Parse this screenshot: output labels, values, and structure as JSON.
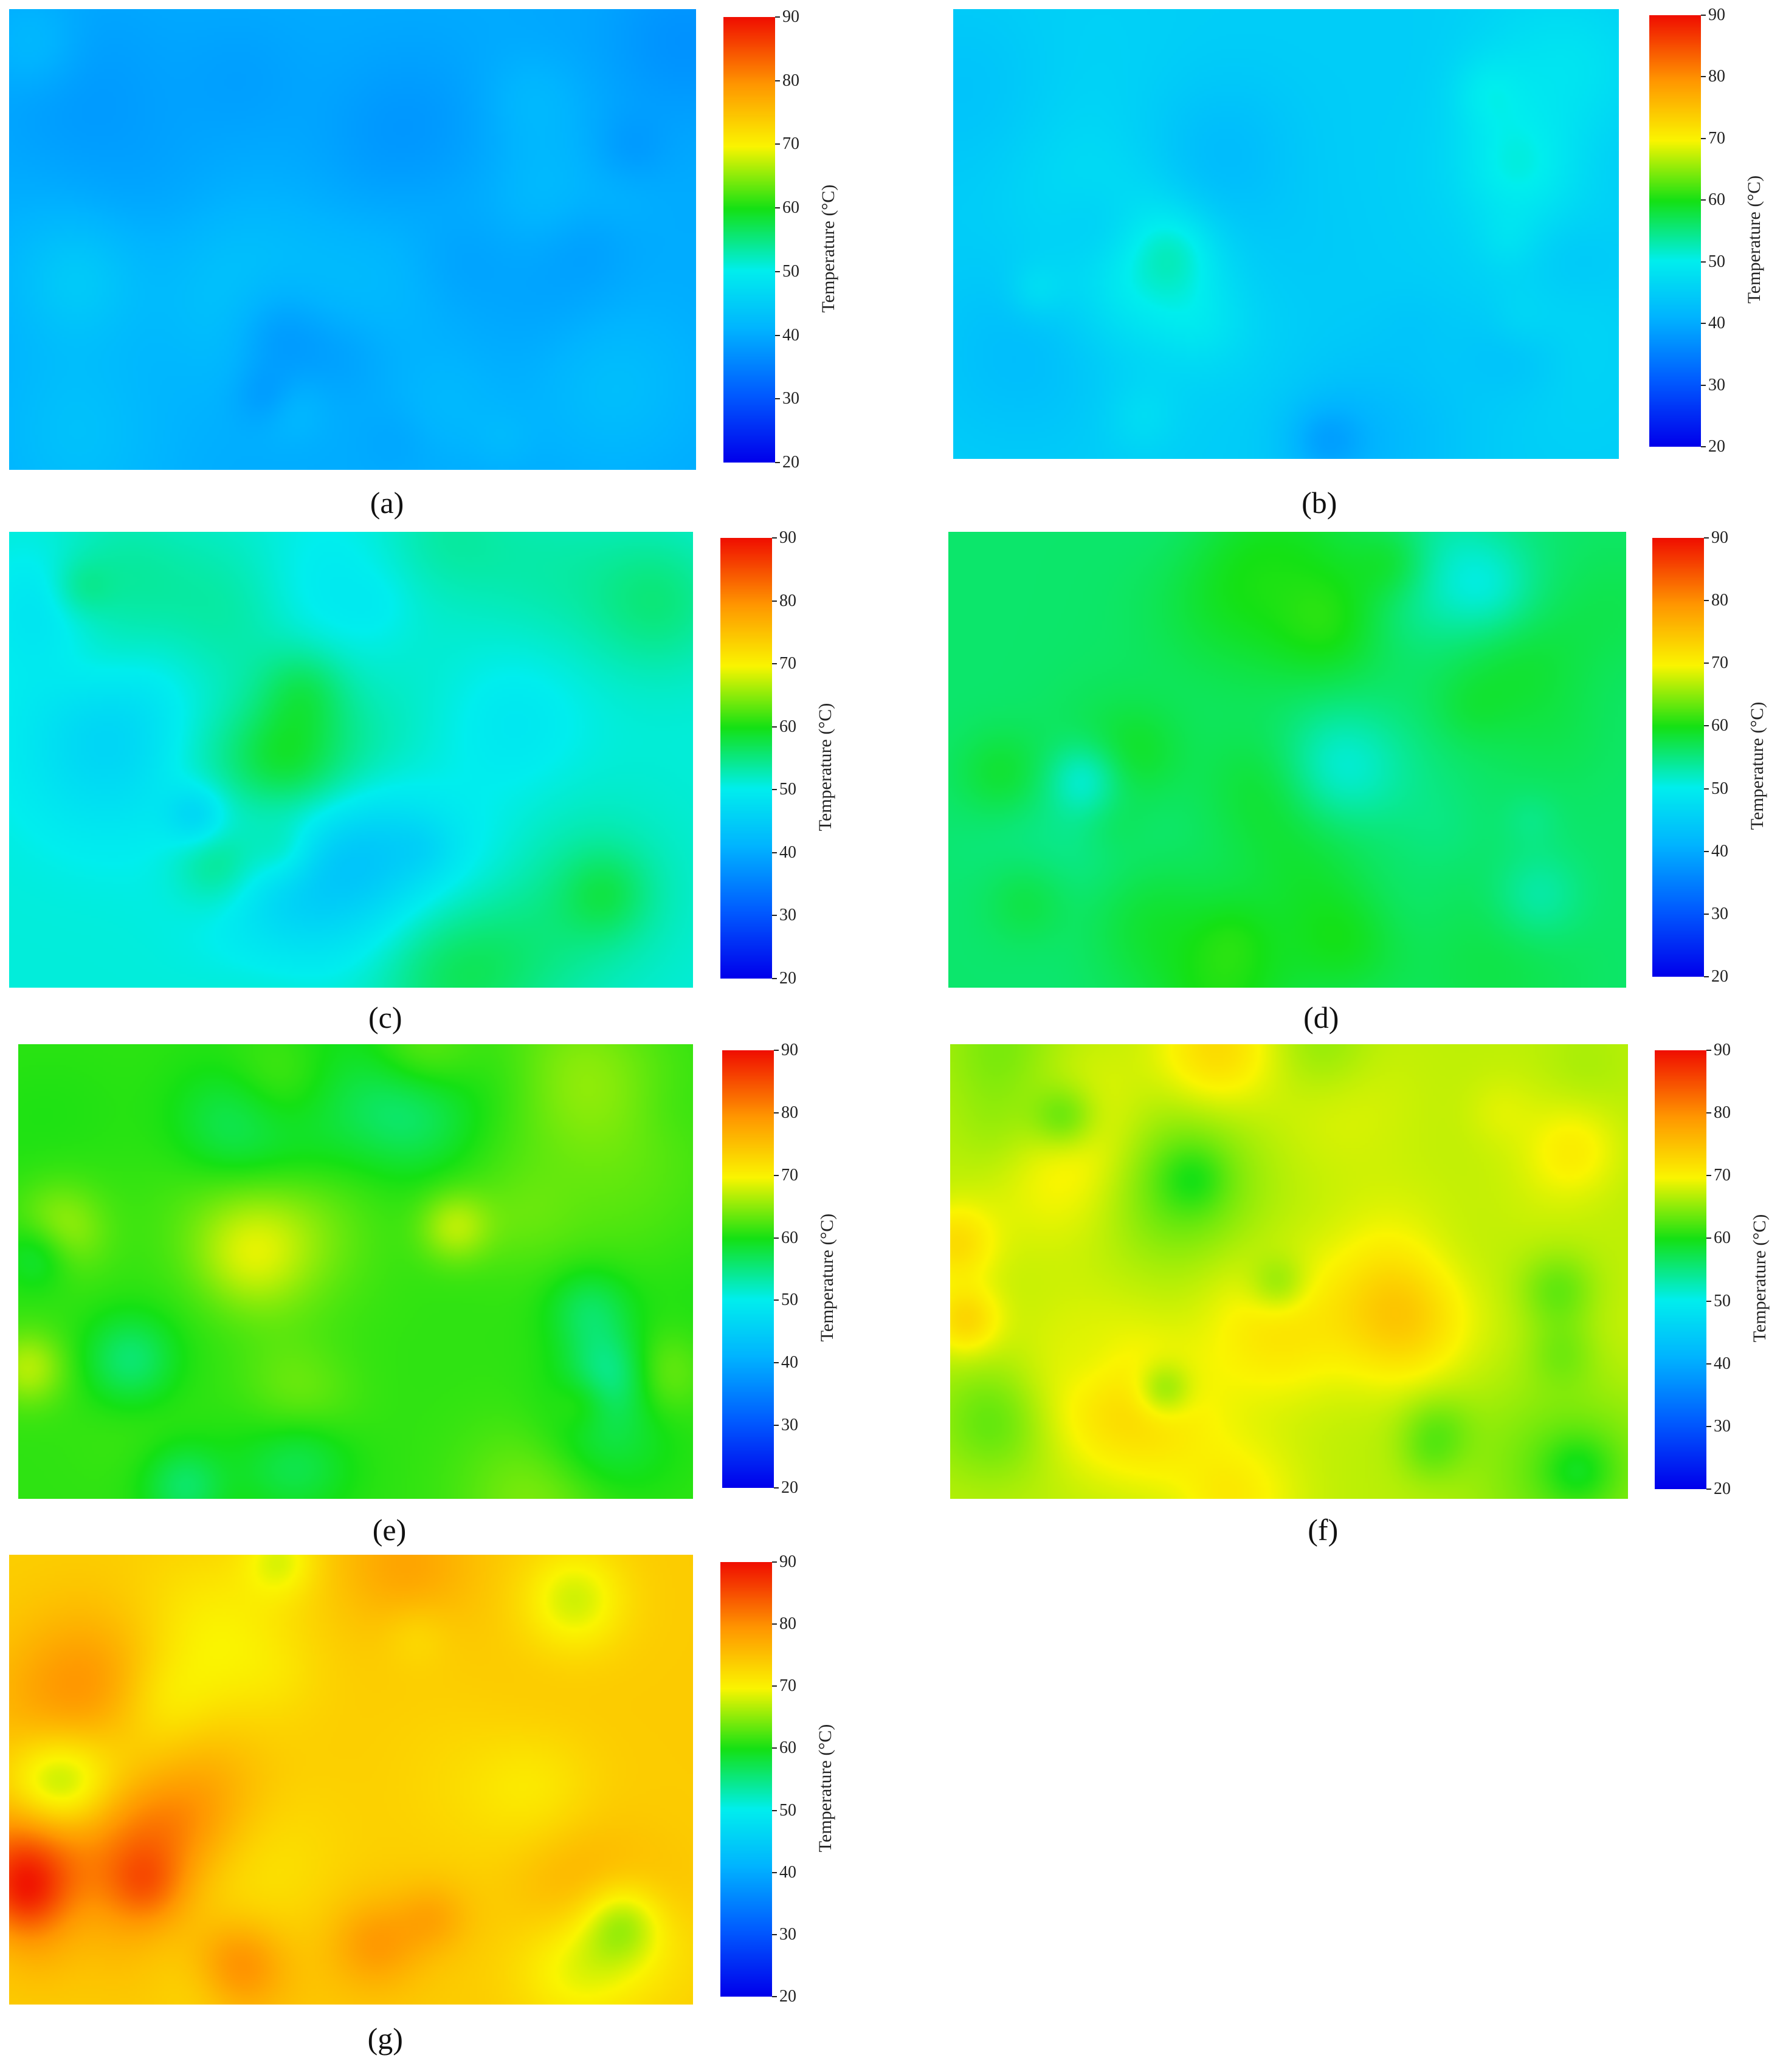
{
  "chart_data": [
    {
      "type": "heatmap",
      "label": "(a)",
      "zrange": [
        20,
        90
      ],
      "colorbar": {
        "title": "Temperature (°C)",
        "ticks": [
          90,
          80,
          70,
          60,
          50,
          40,
          30,
          20
        ]
      },
      "temp_base": 40,
      "temp_spread": 3,
      "seed": 11
    },
    {
      "type": "heatmap",
      "label": "(b)",
      "zrange": [
        20,
        90
      ],
      "colorbar": {
        "title": "Temperature (°C)",
        "ticks": [
          90,
          80,
          70,
          60,
          50,
          40,
          30,
          20
        ]
      },
      "temp_base": 45,
      "temp_spread": 4,
      "seed": 23
    },
    {
      "type": "heatmap",
      "label": "(c)",
      "zrange": [
        20,
        90
      ],
      "colorbar": {
        "title": "Temperature (°C)",
        "ticks": [
          90,
          80,
          70,
          60,
          50,
          40,
          30,
          20
        ]
      },
      "temp_base": 51,
      "temp_spread": 5,
      "seed": 37
    },
    {
      "type": "heatmap",
      "label": "(d)",
      "zrange": [
        20,
        90
      ],
      "colorbar": {
        "title": "Temperature (°C)",
        "ticks": [
          90,
          80,
          70,
          60,
          50,
          40,
          30,
          20
        ]
      },
      "temp_base": 56,
      "temp_spread": 5,
      "seed": 41
    },
    {
      "type": "heatmap",
      "label": "(e)",
      "zrange": [
        20,
        90
      ],
      "colorbar": {
        "title": "Temperature (°C)",
        "ticks": [
          90,
          80,
          70,
          60,
          50,
          40,
          30,
          20
        ]
      },
      "temp_base": 61,
      "temp_spread": 6,
      "seed": 53
    },
    {
      "type": "heatmap",
      "label": "(f)",
      "zrange": [
        20,
        90
      ],
      "colorbar": {
        "title": "Temperature (°C)",
        "ticks": [
          90,
          80,
          70,
          60,
          50,
          40,
          30,
          20
        ]
      },
      "temp_base": 67,
      "temp_spread": 6,
      "seed": 67
    },
    {
      "type": "heatmap",
      "label": "(g)",
      "zrange": [
        20,
        90
      ],
      "colorbar": {
        "title": "Temperature (°C)",
        "ticks": [
          90,
          80,
          70,
          60,
          50,
          40,
          30,
          20
        ]
      },
      "temp_base": 74,
      "temp_spread": 8,
      "seed": 79
    }
  ]
}
